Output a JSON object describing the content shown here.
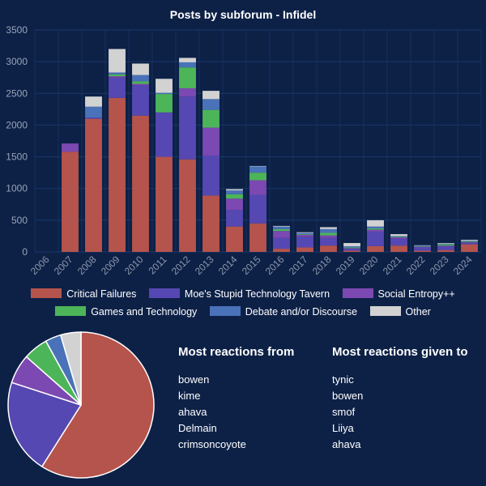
{
  "chart_data": [
    {
      "type": "bar",
      "stacked": true,
      "title": "Posts by subforum - Infidel",
      "categories": [
        "2006",
        "2007",
        "2008",
        "2009",
        "2010",
        "2011",
        "2012",
        "2013",
        "2014",
        "2015",
        "2016",
        "2017",
        "2018",
        "2019",
        "2020",
        "2021",
        "2022",
        "2023",
        "2024"
      ],
      "ylim": [
        0,
        3500
      ],
      "yticks": [
        0,
        500,
        1000,
        1500,
        2000,
        2500,
        3000,
        3500
      ],
      "grid": true,
      "legend": "bottom",
      "series": [
        {
          "name": "Critical Failures",
          "color": "#b5544c",
          "values": [
            0,
            1580,
            2100,
            2430,
            2150,
            1500,
            1460,
            890,
            400,
            450,
            50,
            70,
            100,
            20,
            90,
            100,
            20,
            30,
            120
          ]
        },
        {
          "name": "Moe's Stupid Technology Tavern",
          "color": "#5648b2",
          "values": [
            0,
            0,
            20,
            320,
            480,
            700,
            990,
            630,
            260,
            450,
            170,
            170,
            120,
            30,
            230,
            110,
            60,
            60,
            30
          ]
        },
        {
          "name": "Social Entropy++",
          "color": "#7c48b2",
          "values": [
            0,
            130,
            0,
            20,
            20,
            0,
            130,
            440,
            180,
            230,
            110,
            30,
            40,
            10,
            30,
            20,
            5,
            10,
            5
          ]
        },
        {
          "name": "Games and Technology",
          "color": "#4db559",
          "values": [
            0,
            0,
            0,
            30,
            40,
            290,
            330,
            280,
            70,
            120,
            30,
            10,
            40,
            10,
            20,
            10,
            5,
            20,
            10
          ]
        },
        {
          "name": "Debate and/or Discourse",
          "color": "#4a72b8",
          "values": [
            0,
            0,
            170,
            30,
            100,
            20,
            80,
            170,
            60,
            100,
            40,
            20,
            60,
            20,
            30,
            10,
            10,
            10,
            10
          ]
        },
        {
          "name": "Other",
          "color": "#d2d2d2",
          "values": [
            0,
            0,
            160,
            370,
            180,
            220,
            70,
            130,
            20,
            5,
            10,
            10,
            30,
            50,
            100,
            30,
            5,
            10,
            15
          ]
        }
      ]
    },
    {
      "type": "pie",
      "labels": [
        "Critical Failures",
        "Moe's Stupid Technology Tavern",
        "Social Entropy++",
        "Games and Technology",
        "Debate and/or Discourse",
        "Other"
      ],
      "values": [
        59.0,
        21.0,
        6.5,
        5.5,
        3.5,
        4.5
      ],
      "colors": [
        "#b5544c",
        "#5648b2",
        "#7c48b2",
        "#4db559",
        "#4a72b8",
        "#d2d2d2"
      ]
    }
  ],
  "panels": {
    "from": {
      "title": "Most reactions from",
      "items": [
        "bowen",
        "kime",
        "ahava",
        "Delmain",
        "crimsoncoyote"
      ]
    },
    "given": {
      "title": "Most reactions given to",
      "items": [
        "tynic",
        "bowen",
        "smof",
        "Liiya",
        "ahava"
      ]
    }
  }
}
